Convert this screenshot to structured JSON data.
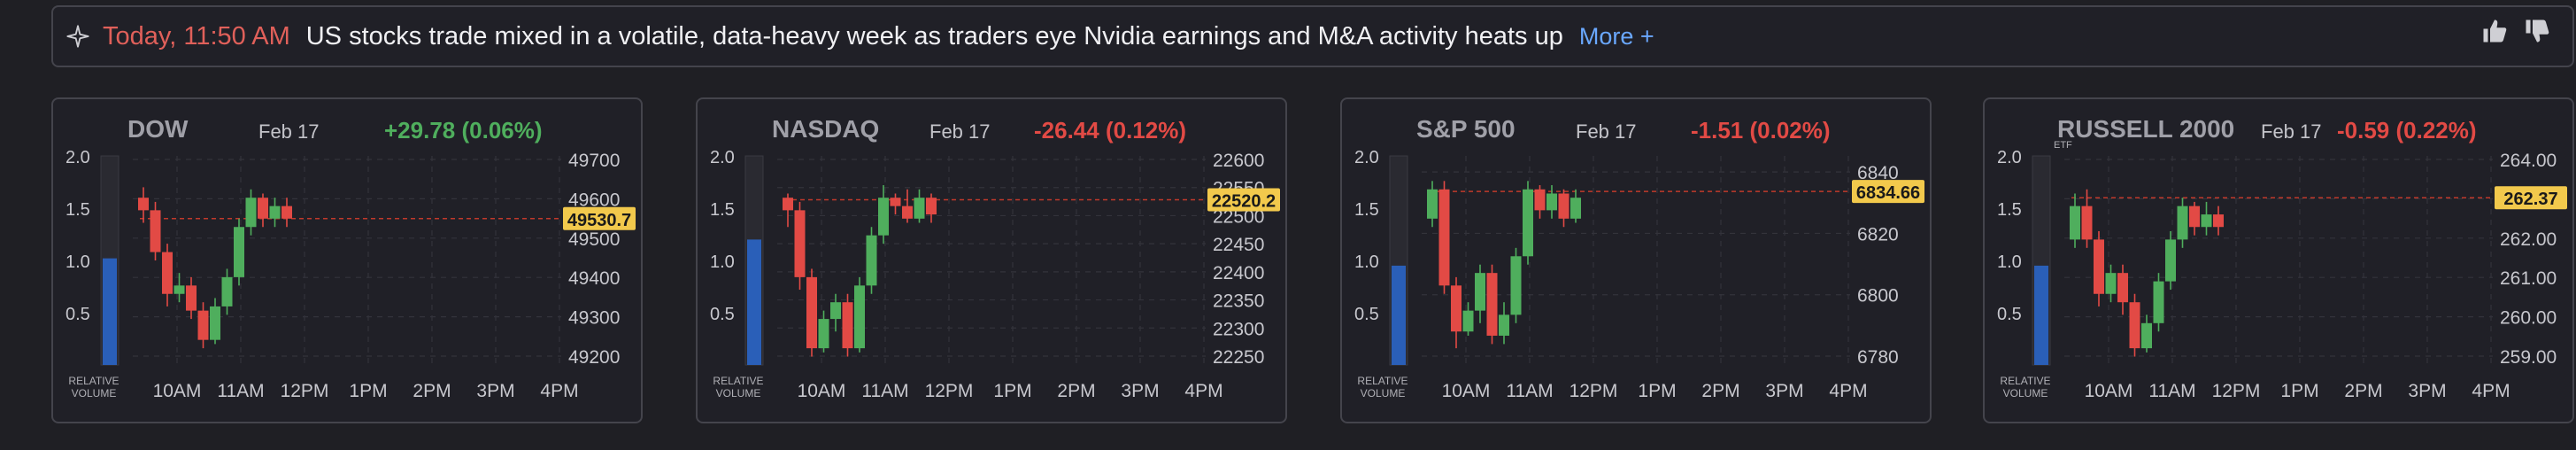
{
  "news": {
    "time": "Today, 11:50 AM",
    "headline": "US stocks trade mixed in a volatile, data-heavy week as traders eye Nvidia earnings and M&A activity heats up",
    "more_label": "More +",
    "icons": [
      "sparkle-icon",
      "thumbs-up-icon",
      "thumbs-down-icon"
    ]
  },
  "colors": {
    "up": "#4fae5d",
    "down": "#e24a45",
    "volume": "#2a5fb8",
    "price_label_bg": "#f2c94c",
    "accent_news_time": "#e0605a",
    "link": "#6aa8ff"
  },
  "x_axis_labels": [
    "10AM",
    "11AM",
    "12PM",
    "1PM",
    "2PM",
    "3PM",
    "4PM"
  ],
  "rv_label": [
    "RELATIVE",
    "VOLUME"
  ],
  "rv_ticks": [
    "2.0",
    "1.5",
    "1.0",
    "0.5"
  ],
  "cards": [
    {
      "name": "DOW",
      "date": "Feb 17",
      "change": "+29.78 (0.06%)",
      "direction": "up",
      "price_label": "49530.7",
      "price": 49530.7,
      "relative_volume": 1.02,
      "yticks": [
        "49700",
        "49600",
        "49500",
        "49400",
        "49300",
        "49200"
      ],
      "ytick_values": [
        49700,
        49600,
        49500,
        49400,
        49300,
        49200
      ]
    },
    {
      "name": "NASDAQ",
      "date": "Feb 17",
      "change": "-26.44 (0.12%)",
      "direction": "down",
      "price_label": "22520.2",
      "price": 22520.2,
      "relative_volume": 1.2,
      "yticks": [
        "22600",
        "22550",
        "22500",
        "22450",
        "22400",
        "22350",
        "22300",
        "22250"
      ],
      "ytick_values": [
        22600,
        22550,
        22500,
        22450,
        22400,
        22350,
        22300,
        22250
      ]
    },
    {
      "name": "S&P 500",
      "date": "Feb 17",
      "change": "-1.51 (0.02%)",
      "direction": "down",
      "price_label": "6834.66",
      "price": 6834.66,
      "relative_volume": 0.95,
      "yticks": [
        "6840",
        "6820",
        "6800",
        "6780"
      ],
      "ytick_values": [
        6840,
        6820,
        6800,
        6780
      ]
    },
    {
      "name": "RUSSELL 2000",
      "sub": "ETF",
      "date": "Feb 17",
      "change": "-0.59 (0.22%)",
      "direction": "down",
      "price_label": "262.37",
      "price": 262.37,
      "relative_volume": 0.95,
      "yticks": [
        "264.00",
        "263.00",
        "262.00",
        "261.00",
        "260.00",
        "259.00"
      ],
      "ytick_values": [
        264,
        263,
        262,
        261,
        260,
        259
      ]
    }
  ]
}
